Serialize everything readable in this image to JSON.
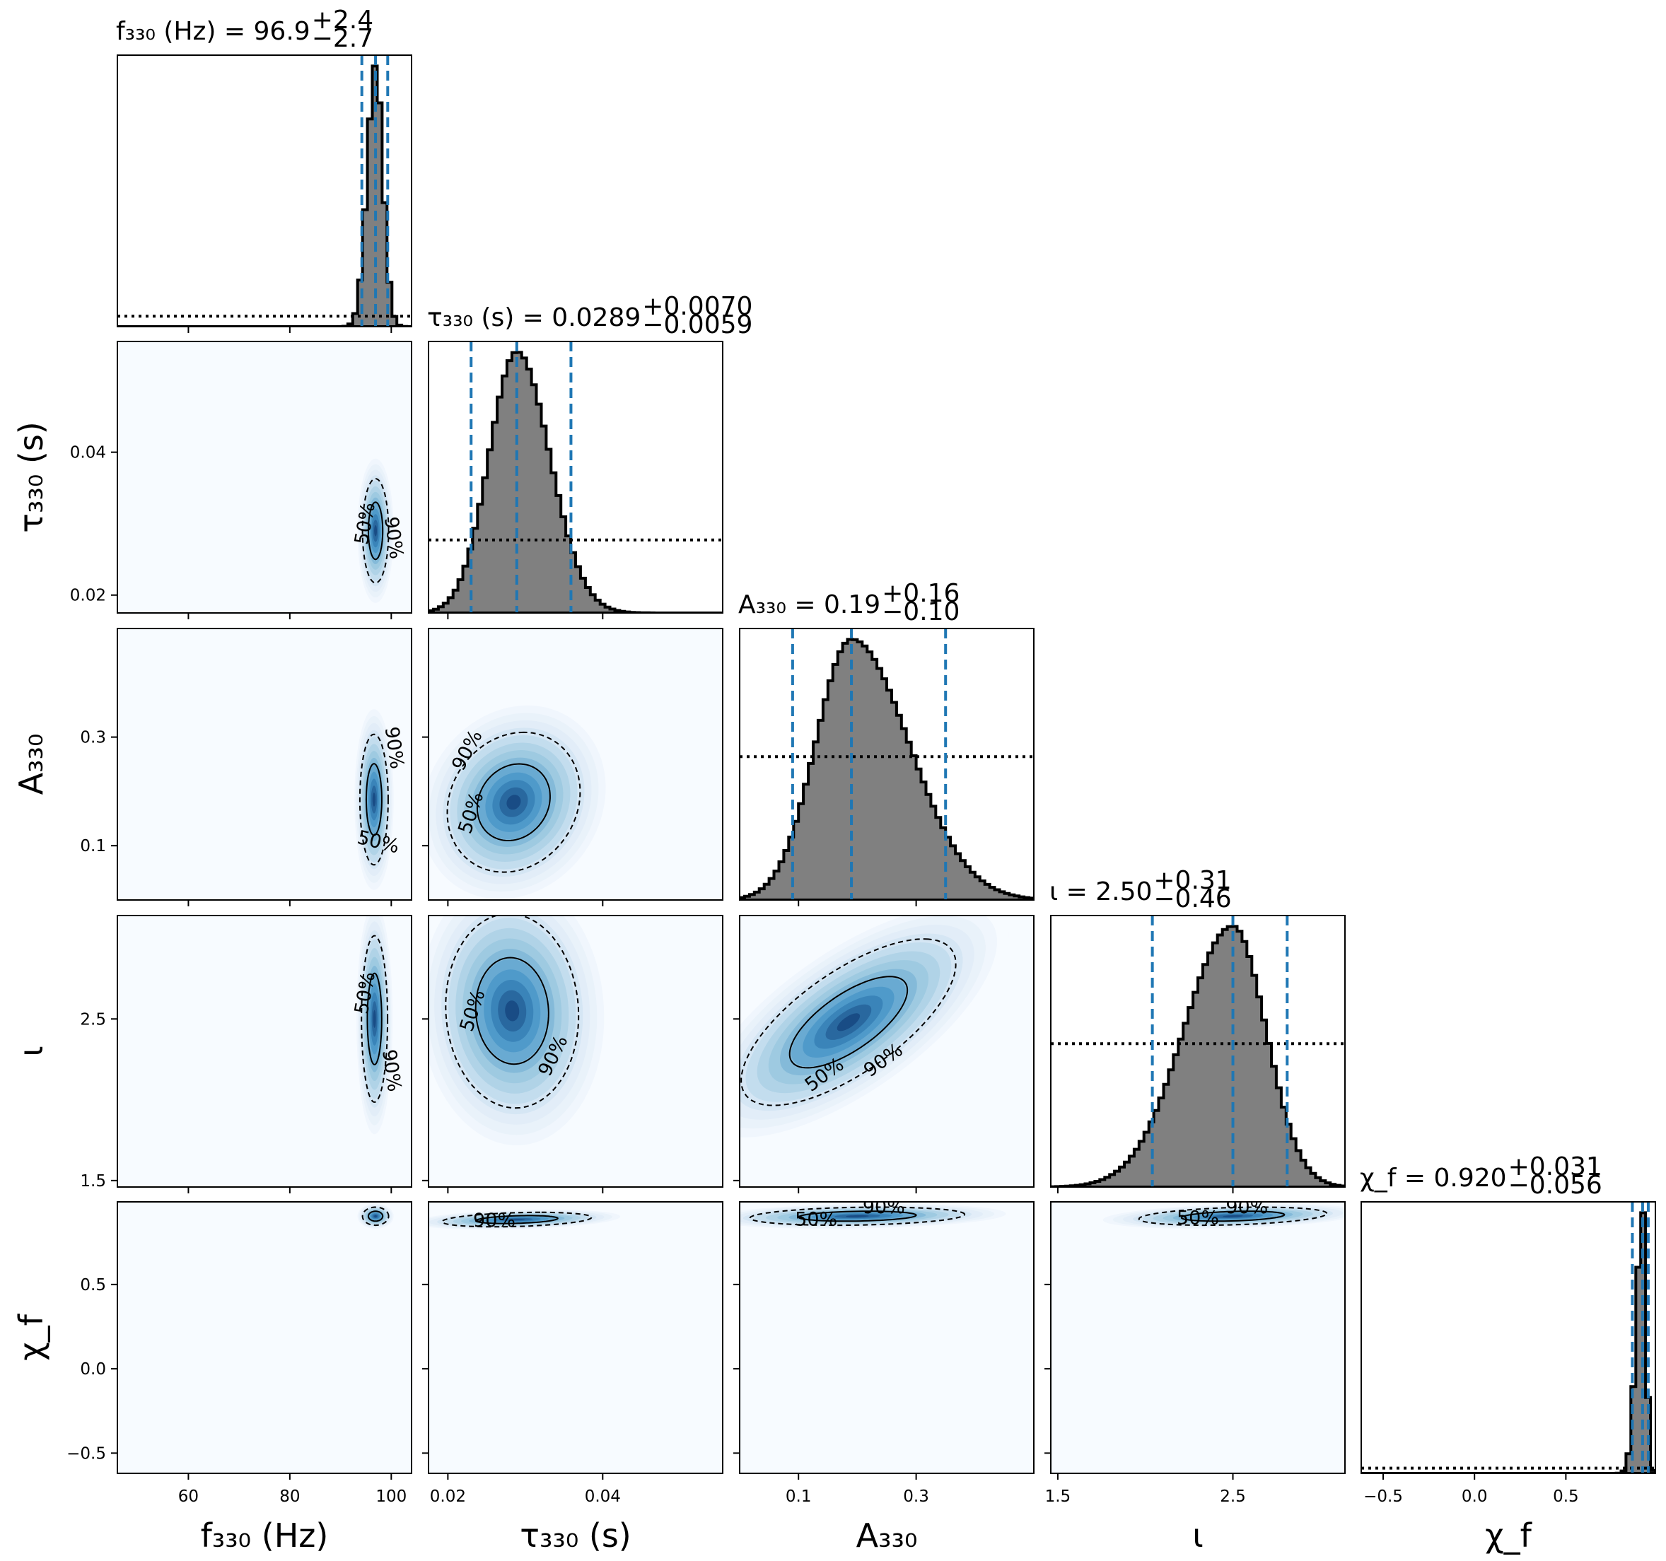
{
  "chart_data": {
    "type": "corner",
    "parameters": [
      {
        "key": "f330",
        "axis_label": "f₃₃₀ (Hz)",
        "title": "f₃₃₀ (Hz) = 96.9",
        "median": 96.9,
        "plus": "+2.4",
        "minus": "−2.7",
        "quantiles": [
          94.2,
          96.9,
          99.3
        ],
        "range": [
          46,
          104
        ],
        "ticks": [
          60,
          80,
          100
        ],
        "tick_labels": [
          "60",
          "80",
          "100"
        ],
        "log_scale": false
      },
      {
        "key": "tau330",
        "axis_label": "τ₃₃₀ (s)",
        "title": "τ₃₃₀ (s) = 0.0289",
        "median": 0.0289,
        "plus": "+0.0070",
        "minus": "−0.0059",
        "quantiles": [
          0.023,
          0.0289,
          0.0359
        ],
        "range": [
          0.0175,
          0.0555
        ],
        "ticks": [
          0.02,
          0.04
        ],
        "tick_labels": [
          "0.02",
          "0.04"
        ],
        "log_scale": false
      },
      {
        "key": "A330",
        "axis_label": "A₃₃₀",
        "title": "A₃₃₀ = 0.19",
        "median": 0.19,
        "plus": "+0.16",
        "minus": "−0.10",
        "quantiles": [
          0.09,
          0.19,
          0.35
        ],
        "range": [
          0.0,
          0.5
        ],
        "ticks": [
          0.1,
          0.3
        ],
        "tick_labels": [
          "0.1",
          "0.3"
        ],
        "log_scale": false
      },
      {
        "key": "iota",
        "axis_label": "ι",
        "title": "ι = 2.50",
        "median": 2.5,
        "plus": "+0.31",
        "minus": "−0.46",
        "quantiles": [
          2.04,
          2.5,
          2.81
        ],
        "range": [
          1.46,
          3.14
        ],
        "ticks": [
          1.5,
          2.5
        ],
        "tick_labels": [
          "1.5",
          "2.5"
        ],
        "log_scale": false
      },
      {
        "key": "chif",
        "axis_label": "χ_f",
        "title": "χ_f = 0.920",
        "median": 0.92,
        "plus": "+0.031",
        "minus": "−0.056",
        "quantiles": [
          0.864,
          0.92,
          0.951
        ],
        "range": [
          -0.62,
          0.99
        ],
        "ticks": [
          -0.5,
          0.0,
          0.5
        ],
        "tick_labels": [
          "−0.5",
          "0.0",
          "0.5"
        ],
        "log_scale": false
      }
    ],
    "prior_levels": [
      0.04,
      0.28,
      0.55,
      0.55,
      0.02
    ],
    "pairs": [
      {
        "x": 0,
        "y": 1,
        "cx": 96.9,
        "cy": 0.029,
        "sx": 1.2,
        "sy": 0.0034,
        "rho": 0.0,
        "labels50": [
          {
            "text": "50%",
            "x": 95.0,
            "y": 0.03,
            "rot": -80
          }
        ],
        "labels90": [
          {
            "text": "90%",
            "x": 100.3,
            "y": 0.028,
            "rot": 82
          }
        ]
      },
      {
        "x": 0,
        "y": 2,
        "cx": 96.6,
        "cy": 0.185,
        "sx": 1.3,
        "sy": 0.056,
        "rho": 0.0,
        "labels50": [
          {
            "text": "50%",
            "x": 97.4,
            "y": 0.105,
            "rot": 14
          }
        ],
        "labels90": [
          {
            "text": "90%",
            "x": 100.4,
            "y": 0.28,
            "rot": 82
          }
        ]
      },
      {
        "x": 1,
        "y": 2,
        "cx": 0.0285,
        "cy": 0.18,
        "sx": 0.004,
        "sy": 0.06,
        "rho": 0.15,
        "labels50": [
          {
            "text": "50%",
            "x": 0.0231,
            "y": 0.16,
            "rot": -72
          }
        ],
        "labels90": [
          {
            "text": "90%",
            "x": 0.0226,
            "y": 0.275,
            "rot": -62
          }
        ]
      },
      {
        "x": 0,
        "y": 3,
        "cx": 96.7,
        "cy": 2.5,
        "sx": 1.2,
        "sy": 0.24,
        "rho": 0.0,
        "labels50": [
          {
            "text": "50%",
            "x": 95.0,
            "y": 2.66,
            "rot": -80
          }
        ],
        "labels90": [
          {
            "text": "90%",
            "x": 99.9,
            "y": 2.18,
            "rot": 82
          }
        ]
      },
      {
        "x": 1,
        "y": 3,
        "cx": 0.0283,
        "cy": 2.55,
        "sx": 0.004,
        "sy": 0.28,
        "rho": -0.05,
        "labels50": [
          {
            "text": "50%",
            "x": 0.0233,
            "y": 2.55,
            "rot": -72
          }
        ],
        "labels90": [
          {
            "text": "90%",
            "x": 0.0337,
            "y": 2.27,
            "rot": -64
          }
        ]
      },
      {
        "x": 2,
        "y": 3,
        "cx": 0.185,
        "cy": 2.48,
        "sx": 0.085,
        "sy": 0.24,
        "rho": 0.7,
        "labels50": [
          {
            "text": "50%",
            "x": 0.145,
            "y": 2.15,
            "rot": -36
          }
        ],
        "labels90": [
          {
            "text": "90%",
            "x": 0.245,
            "y": 2.24,
            "rot": -36
          }
        ]
      },
      {
        "x": 0,
        "y": 4,
        "cx": 96.9,
        "cy": 0.905,
        "sx": 1.2,
        "sy": 0.025,
        "rho": 0.0,
        "labels50": [],
        "labels90": []
      },
      {
        "x": 1,
        "y": 4,
        "cx": 0.0289,
        "cy": 0.885,
        "sx": 0.0045,
        "sy": 0.02,
        "rho": 0.3,
        "labels50": [],
        "labels90": [
          {
            "text": "90%",
            "x": 0.026,
            "y": 0.875,
            "rot": 0
          }
        ]
      },
      {
        "x": 2,
        "y": 4,
        "cx": 0.2,
        "cy": 0.905,
        "sx": 0.085,
        "sy": 0.025,
        "rho": 0.2,
        "labels50": [
          {
            "text": "50%",
            "x": 0.13,
            "y": 0.88,
            "rot": 0
          }
        ],
        "labels90": [
          {
            "text": "90%",
            "x": 0.245,
            "y": 0.955,
            "rot": 0
          }
        ]
      },
      {
        "x": 3,
        "y": 4,
        "cx": 2.5,
        "cy": 0.905,
        "sx": 0.25,
        "sy": 0.025,
        "rho": 0.3,
        "labels50": [
          {
            "text": "50%",
            "x": 2.3,
            "y": 0.89,
            "rot": 0
          }
        ],
        "labels90": [
          {
            "text": "90%",
            "x": 2.58,
            "y": 0.955,
            "rot": 0
          }
        ]
      }
    ],
    "contour_levels": [
      "50%",
      "90%"
    ],
    "colors": {
      "histogram_fill": "#808080",
      "quantile_lines": "#1f77b4",
      "density_colormap": "Blues"
    },
    "grid": false
  }
}
